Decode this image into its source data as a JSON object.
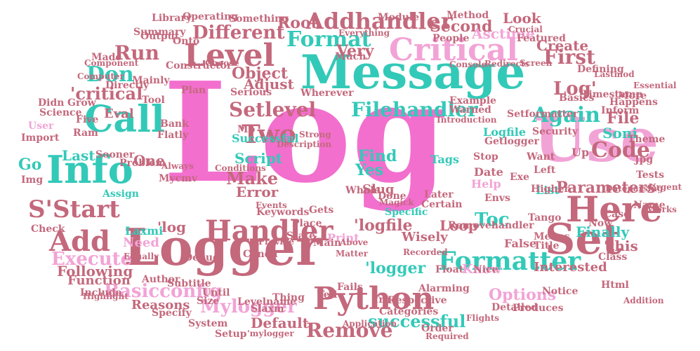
{
  "colors": {
    "pink": "#f26fce",
    "teal": "#33c9b8",
    "rose": "#c4687c",
    "lightpink": "#f2a3d6"
  },
  "words": {
    "log": "Log",
    "message": "Message",
    "logger": "Logger",
    "use": "Use",
    "info": "Info",
    "level": "Level",
    "critical": "Critical",
    "set": "Set",
    "here": "Here",
    "handler": "Handler",
    "call": "Call",
    "python": "Python",
    "formatter": "Formatter",
    "setlevel": "Setlevel",
    "filehandler": "Filehandler",
    "again": "Again",
    "two": "Two",
    "add": "Add",
    "sstart": "S'Start",
    "code": "Code",
    "critical_q": "'critical",
    "addhandler": "Addhandler",
    "different": "Different",
    "run": "Run",
    "don": "Don",
    "format": "Format",
    "first": "First",
    "log_q": "Log'",
    "successful": "Successful",
    "script": "Script",
    "loop": "Loop",
    "toc": "Toc",
    "logfile_q": "'logfile",
    "log_q2": "'log",
    "logger_q": "'logger",
    "successful_l": "successful",
    "mylogger": "Mylogger",
    "remove": "Remove",
    "execute": "Execute",
    "basicconfig": "Basicconfig",
    "make": "Make",
    "error": "Error",
    "yes": "Yes",
    "find": "Find",
    "one": "One",
    "last": "Last",
    "go": "Go",
    "options": "Options",
    "file": "File",
    "soni": "Soni",
    "parameters": "Parameters",
    "finally": "Finally",
    "this_q": "'this",
    "need": "Need",
    "laxmi": "Laxmi",
    "following": "Following",
    "function": "Function",
    "reasons": "Reasons",
    "default": "Default",
    "interested": "Interested",
    "list": "List",
    "adjust": "Adjust",
    "object": "Object",
    "eval": "Eval",
    "five": "Five",
    "import": "Import",
    "user": "User",
    "very": "Very",
    "root": "Root",
    "second": "Second",
    "look": "Look",
    "asctime": "Asctime",
    "create": "Create",
    "logfile": "Logfile",
    "tags": "Tags",
    "date": "Date",
    "help": "Help",
    "wisely": "Wisely",
    "print": "Print",
    "place": "Place",
    "gets": "Gets",
    "slug": "Slug",
    "know": "Know",
    "false": "False",
    "now": "Now",
    "up": "Up",
    "exe": "Exe",
    "left": "Left",
    "assign": "Assign",
    "mb": "Mb",
    "stop": "Stop",
    "envs": "Envs",
    "tool": "Tool",
    "much": "Much",
    "library": "Library",
    "output": "Output",
    "onto": "Onto",
    "mainly": "Mainly",
    "directly": "Directly",
    "grow": "Grow",
    "keywords": "Keywords",
    "debug": "Debug",
    "conda": "Conda",
    "levelname": "Levelname",
    "system": "System",
    "tell": "Tell",
    "fails": "Fails",
    "true": "True",
    "removehandler": "Removehandler",
    "tango": "Tango",
    "float": "Float",
    "class": "Class",
    "title": "Title",
    "notice": "Notice",
    "html": "Html",
    "jpg": "Jpg",
    "inform": "Inform",
    "more": "More",
    "basics": "Basics",
    "security": "Security",
    "theme": "Theme",
    "name": "Name",
    "tests": "Tests",
    "case": "Case",
    "check": "Check",
    "include": "Include",
    "author": "Author",
    "subtitle": "Subtitle",
    "specify": "Specify",
    "whole": "Whole",
    "alarming": "Alarming",
    "detailed": "Detailed",
    "order": "Order",
    "setup": "Setup",
    "slaxm": "Slaxm",
    "categories": "Categories",
    "certain": "Certain",
    "later": "Later",
    "specific": "Specific",
    "main": "Main",
    "state": "State",
    "thing": "Thing",
    "until": "Until",
    "size": "Size",
    "problem": "Problem",
    "sooner": "Sooner",
    "ram": "Ram",
    "serious": "Serious",
    "plan": "Plan",
    "flatly": "Flatly",
    "bank": "Bank",
    "science": "Science",
    "didn": "Didn",
    "made": "Made",
    "summary": "Summary",
    "operating": "Operating",
    "module": "Module",
    "method": "Method",
    "people": "People",
    "featured": "Featured",
    "defining": "Defining",
    "timestamp": "Timestamp",
    "happens": "Happens",
    "want": "Want",
    "higher": "Higher",
    "works": "Works",
    "means": "Means",
    "nice": "Nice",
    "produces": "Produces",
    "required": "Required",
    "flights": "Flights",
    "equally": "Equally",
    "img": "Img",
    "highlight": "Highlight",
    "everything": "Everything",
    "something": "Something",
    "crucial": "Crucial",
    "warned": "Warned",
    "example": "Example",
    "introduction": "Introduction",
    "getlogger": "Getlogger",
    "setformatter": "Setformatter",
    "screen": "Screen",
    "component": "Component",
    "constructor": "Constructor",
    "computer": "Computer",
    "wherever": "Wherever",
    "done": "Done",
    "magick": "Magick",
    "description": "Description",
    "conditions": "Conditions",
    "respective": "Respective",
    "mycmv": "Mycmv",
    "application": "Application",
    "above": "Above",
    "provide": "Provide",
    "always": "Always",
    "choose": "Choose",
    "strong": "Strong",
    "events": "Events",
    "recorded": "Recorded",
    "matter": "Matter",
    "mylogger_q": "'mylogger",
    "addition": "Addition",
    "urgent": "Urgent",
    "essential": "Essential",
    "lastmod": "Lastmod",
    "console": "Console",
    "redirects": "Redirects",
    "dateparsing": "Dateparsing"
  }
}
